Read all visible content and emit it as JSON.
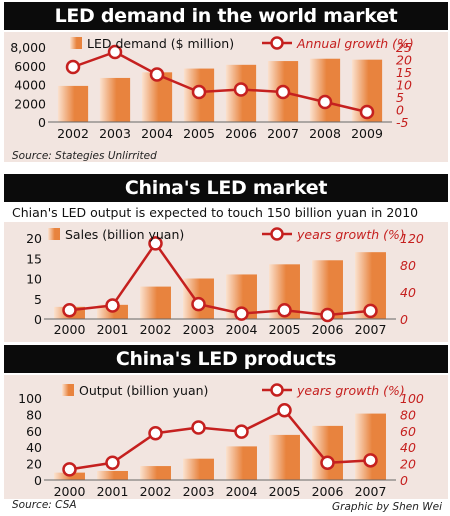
{
  "colors": {
    "bar_light": "#fbe2cf",
    "bar_dark": "#e8833e",
    "line": "#c5201f",
    "panel": "#f2e5e0",
    "header": "#0b0b0b"
  },
  "chart_data": [
    {
      "type": "bar",
      "title": "LED demand in the world market",
      "categories": [
        "2002",
        "2003",
        "2004",
        "2005",
        "2006",
        "2007",
        "2008",
        "2009"
      ],
      "series": [
        {
          "name": "LED demand ($ million)",
          "axis": "left",
          "values": [
            3850,
            4700,
            5300,
            5700,
            6100,
            6500,
            6750,
            6650
          ]
        },
        {
          "name": "Annual growth (%)",
          "axis": "right",
          "type": "line",
          "values": [
            17,
            23,
            14,
            7,
            8,
            7,
            3,
            -1
          ]
        }
      ],
      "yleft": {
        "ylim": [
          0,
          8000
        ],
        "ticks": [
          "0",
          "2000",
          "4000",
          "6000",
          "8,000"
        ]
      },
      "yright": {
        "ylim": [
          -5,
          25
        ],
        "ticks": [
          "-5",
          "0",
          "5",
          "10",
          "15",
          "20",
          "25"
        ]
      },
      "source": "Source: Stategies Unlirrited"
    },
    {
      "type": "bar",
      "title": "China's LED market",
      "subtitle": "Chian's LED output is expected to touch 150 billion yuan in 2010",
      "categories": [
        "2000",
        "2001",
        "2002",
        "2003",
        "2004",
        "2005",
        "2006",
        "2007"
      ],
      "series": [
        {
          "name": "Sales (billion yuan)",
          "axis": "left",
          "values": [
            3,
            3.5,
            8,
            10,
            11,
            13.5,
            14.5,
            16.5
          ]
        },
        {
          "name": "years growth (%)",
          "axis": "right",
          "type": "line",
          "values": [
            13,
            20,
            112,
            22,
            8,
            13,
            6,
            12
          ]
        }
      ],
      "yleft": {
        "ylim": [
          0,
          20
        ],
        "ticks": [
          "0",
          "5",
          "10",
          "15",
          "20"
        ]
      },
      "yright": {
        "ylim": [
          0,
          120
        ],
        "ticks": [
          "0",
          "40",
          "80",
          "120"
        ]
      }
    },
    {
      "type": "bar",
      "title": "China's LED products",
      "categories": [
        "2000",
        "2001",
        "2002",
        "2003",
        "2004",
        "2005",
        "2006",
        "2007"
      ],
      "series": [
        {
          "name": "Output (billion yuan)",
          "axis": "left",
          "values": [
            9,
            11,
            17,
            26,
            41,
            55,
            66,
            81
          ]
        },
        {
          "name": "years growth (%)",
          "axis": "right",
          "type": "line",
          "values": [
            13,
            21,
            57,
            64,
            59,
            85,
            21,
            24
          ]
        }
      ],
      "yleft": {
        "ylim": [
          0,
          100
        ],
        "ticks": [
          "0",
          "20",
          "40",
          "60",
          "80",
          "100"
        ]
      },
      "yright": {
        "ylim": [
          0,
          100
        ],
        "ticks": [
          "0",
          "20",
          "40",
          "60",
          "80",
          "100"
        ]
      },
      "source": "Source: CSA"
    }
  ],
  "credit": "Graphic by Shen Wei"
}
